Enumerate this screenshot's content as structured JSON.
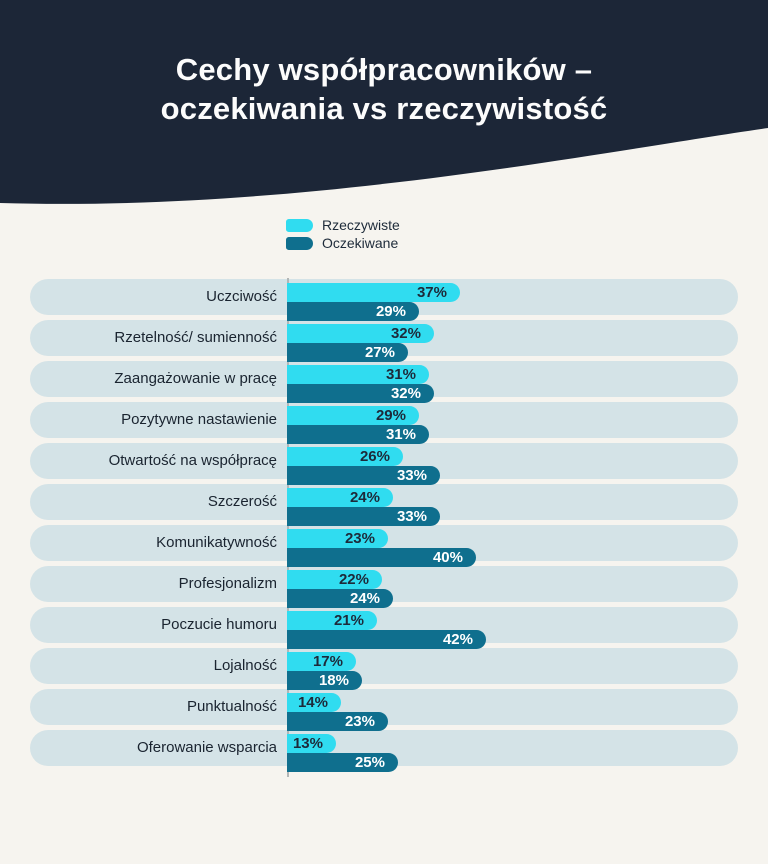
{
  "header": {
    "title_line1": "Cechy współpracowników –",
    "title_line2": "oczekiwania vs rzeczywistość"
  },
  "legend": [
    {
      "label": "Rzeczywiste",
      "color": "#30dcf0"
    },
    {
      "label": "Oczekiwane",
      "color": "#0f6f8e"
    }
  ],
  "colors": {
    "page_bg": "#f6f4ef",
    "header_bg": "#1c2637",
    "header_text": "#fcfcfc",
    "row_bg": "#d4e3e7",
    "bar_real": "#30dcf0",
    "bar_expected": "#0f6f8e",
    "value_on_real": "#1d2a3a",
    "value_on_expected": "#ffffff",
    "axis_line": "#b2b6b6",
    "label_color": "#1a2430",
    "legend_text": "#1e2b3a"
  },
  "chart_data": {
    "type": "bar",
    "orientation": "horizontal",
    "title": "Cechy współpracowników – oczekiwania vs rzeczywistość",
    "value_suffix": "%",
    "legend_position": "top",
    "grid": false,
    "categories": [
      "Uczciwość",
      "Rzetelność/ sumienność",
      "Zaangażowanie w pracę",
      "Pozytywne nastawienie",
      "Otwartość na współpracę",
      "Szczerość",
      "Komunikatywność",
      "Profesjonalizm",
      "Poczucie humoru",
      "Lojalność",
      "Punktualność",
      "Oferowanie wsparcia"
    ],
    "series": [
      {
        "name": "Rzeczywiste",
        "color": "#30dcf0",
        "values": [
          37,
          32,
          31,
          29,
          26,
          24,
          23,
          22,
          21,
          17,
          14,
          13
        ]
      },
      {
        "name": "Oczekiwane",
        "color": "#0f6f8e",
        "values": [
          29,
          27,
          32,
          31,
          33,
          33,
          40,
          24,
          42,
          18,
          23,
          25
        ]
      }
    ]
  }
}
